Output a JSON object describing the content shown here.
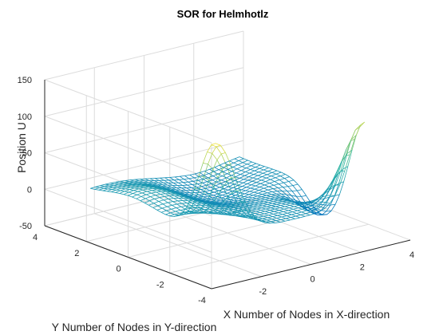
{
  "chart_data": {
    "type": "surface-mesh",
    "title": "SOR for Helmhotlz",
    "xlabel": "X Number of Nodes in X-direction",
    "ylabel": "Y Number of Nodes in Y-direction",
    "zlabel": "Position U",
    "xlim": [
      -4,
      4
    ],
    "ylim": [
      -4,
      4
    ],
    "zlim": [
      -50,
      150
    ],
    "xticks": [
      "-2",
      "0",
      "2",
      "4"
    ],
    "yticks": [
      "-4",
      "-2",
      "0",
      "2",
      "4"
    ],
    "zticks": [
      "-50",
      "0",
      "50",
      "100",
      "150"
    ],
    "grid": true,
    "colormap": "parula",
    "colors": {
      "low": "#0072BD",
      "mid": "#2DB5A8",
      "high": "#F2E33A",
      "axis": "#262626",
      "grid": "#DCDCDC"
    },
    "mesh": {
      "x_range": [
        -3,
        3
      ],
      "y_range": [
        -3,
        3
      ],
      "resolution": 30,
      "features": [
        {
          "description": "peak at x=-3,y=-3 corner",
          "x": -3,
          "y": -3,
          "z": 130
        },
        {
          "description": "peak at x=3,y=-3 corner",
          "x": 3,
          "y": -3,
          "z": 110
        },
        {
          "description": "dip near x=3,y=-1",
          "x": 3,
          "y": -1,
          "z": -40
        },
        {
          "description": "broad hump near x=-2,y=1",
          "x": -2,
          "y": 1,
          "z": 20
        },
        {
          "description": "valley near x=0,y=1",
          "x": 0,
          "y": 1,
          "z": -20
        }
      ]
    }
  }
}
